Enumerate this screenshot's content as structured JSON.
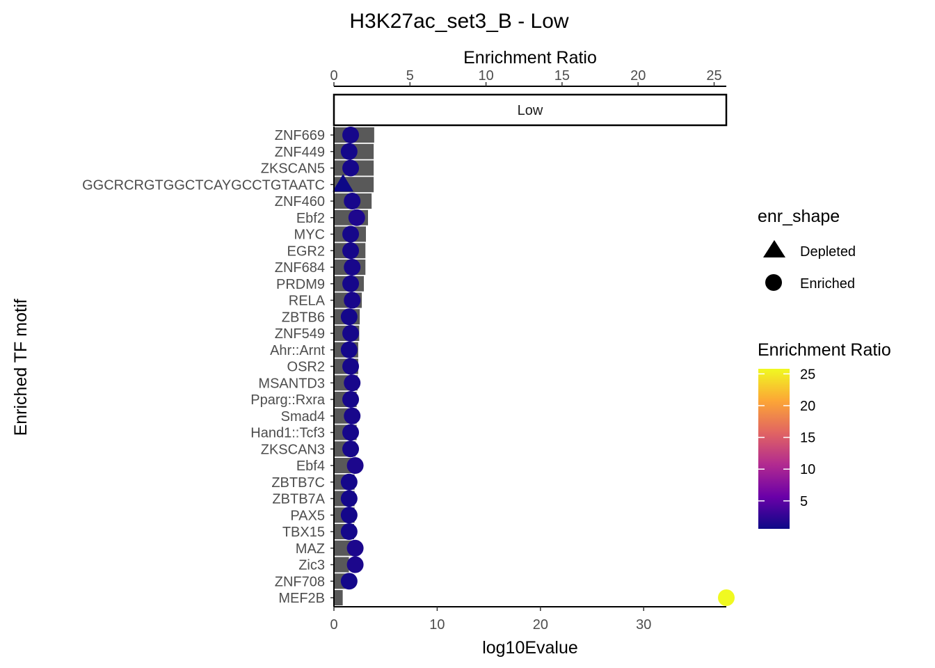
{
  "chart_data": {
    "type": "bar",
    "title": "H3K27ac_set3_B - Low",
    "facet_label": "Low",
    "ylabel": "Enriched TF motif",
    "xlabel": "log10Evalue",
    "x_ticks": [
      0,
      10,
      20,
      30
    ],
    "xlim": [
      0,
      38
    ],
    "secondary_axis": {
      "label": "Enrichment Ratio",
      "ticks": [
        0,
        5,
        10,
        15,
        20,
        25
      ],
      "range": [
        0,
        25.8
      ]
    },
    "categories": [
      "ZNF669",
      "ZNF449",
      "ZKSCAN5",
      "GGCRCRGTGGCTCAYGCCTGTAATC",
      "ZNF460",
      "Ebf2",
      "MYC",
      "EGR2",
      "ZNF684",
      "PRDM9",
      "RELA",
      "ZBTB6",
      "ZNF549",
      "Ahr::Arnt",
      "OSR2",
      "MSANTD3",
      "Pparg::Rxra",
      "Smad4",
      "Hand1::Tcf3",
      "ZKSCAN3",
      "Ebf4",
      "ZBTB7C",
      "ZBTB7A",
      "PAX5",
      "TBX15",
      "MAZ",
      "Zic3",
      "ZNF708",
      "MEF2B"
    ],
    "series": [
      {
        "name": "log10Evalue",
        "mark": "bar",
        "values": [
          3.9,
          3.85,
          3.85,
          3.85,
          3.65,
          3.3,
          3.1,
          3.05,
          3.05,
          2.9,
          2.7,
          2.5,
          2.45,
          2.35,
          2.35,
          2.3,
          2.2,
          2.2,
          2.2,
          2.1,
          2.0,
          2.0,
          2.0,
          2.0,
          1.95,
          1.8,
          1.45,
          1.3,
          0.85
        ]
      },
      {
        "name": "Enrichment Ratio",
        "mark": "point",
        "values": [
          1.1,
          1.0,
          1.1,
          0.6,
          1.2,
          1.5,
          1.1,
          1.1,
          1.2,
          1.1,
          1.2,
          1.0,
          1.1,
          1.0,
          1.1,
          1.2,
          1.1,
          1.2,
          1.1,
          1.1,
          1.4,
          1.0,
          1.0,
          1.0,
          1.0,
          1.4,
          1.4,
          1.0,
          25.8
        ],
        "shapes": [
          "Enriched",
          "Enriched",
          "Enriched",
          "Depleted",
          "Enriched",
          "Enriched",
          "Enriched",
          "Enriched",
          "Enriched",
          "Enriched",
          "Enriched",
          "Enriched",
          "Enriched",
          "Enriched",
          "Enriched",
          "Enriched",
          "Enriched",
          "Enriched",
          "Enriched",
          "Enriched",
          "Enriched",
          "Enriched",
          "Enriched",
          "Enriched",
          "Enriched",
          "Enriched",
          "Enriched",
          "Enriched",
          "Enriched"
        ]
      }
    ],
    "legend_shape": {
      "title": "enr_shape",
      "items": [
        "Depleted",
        "Enriched"
      ]
    },
    "legend_color": {
      "title": "Enrichment Ratio",
      "ticks": [
        5,
        10,
        15,
        20,
        25
      ],
      "range": [
        0.6,
        25.8
      ],
      "palette": [
        "#0d0887",
        "#6a00a8",
        "#b12a90",
        "#e16462",
        "#fca636",
        "#f0f921"
      ]
    },
    "bar_color": "#595959",
    "legend_placement": "right"
  }
}
